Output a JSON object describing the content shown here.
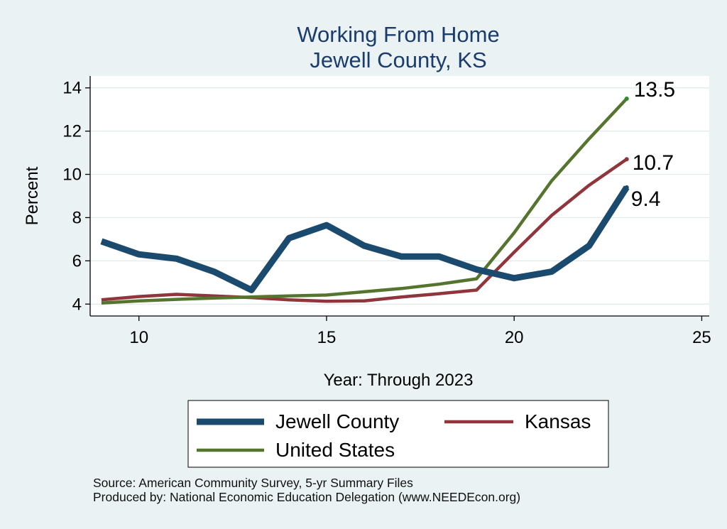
{
  "chart_data": {
    "type": "line",
    "title": "Working From Home",
    "subtitle": "Jewell County, KS",
    "xlabel": "Year: Through 2023",
    "ylabel": "Percent",
    "xlim": [
      8.7,
      25.2
    ],
    "ylim": [
      3.45,
      14.55
    ],
    "xticks": [
      10,
      15,
      20,
      25
    ],
    "yticks": [
      4,
      6,
      8,
      10,
      12,
      14
    ],
    "grid": true,
    "legend_position": "bottom",
    "x": [
      9,
      10,
      11,
      12,
      13,
      14,
      15,
      16,
      17,
      18,
      19,
      20,
      21,
      22,
      23
    ],
    "series": [
      {
        "name": "Jewell County",
        "color": "#1b4a6f",
        "values": [
          6.9,
          6.3,
          6.1,
          5.5,
          4.65,
          7.05,
          7.65,
          6.7,
          6.2,
          6.2,
          5.6,
          5.2,
          5.5,
          6.7,
          9.4
        ],
        "end_label": "9.4"
      },
      {
        "name": "Kansas",
        "color": "#90353b",
        "values": [
          4.2,
          4.35,
          4.45,
          4.38,
          4.3,
          4.2,
          4.13,
          4.15,
          4.33,
          4.48,
          4.65,
          6.4,
          8.1,
          9.5,
          10.7
        ],
        "end_label": "10.7"
      },
      {
        "name": "United States",
        "color": "#55752f",
        "values": [
          4.05,
          4.15,
          4.22,
          4.28,
          4.33,
          4.38,
          4.42,
          4.57,
          4.72,
          4.92,
          5.17,
          7.3,
          9.7,
          11.65,
          13.5
        ],
        "end_label": "13.5"
      }
    ]
  },
  "footer": {
    "source": "Source: American Community Survey, 5-yr Summary Files",
    "produced": "Produced by: National Economic Education Delegation (www.NEEDEcon.org)"
  }
}
